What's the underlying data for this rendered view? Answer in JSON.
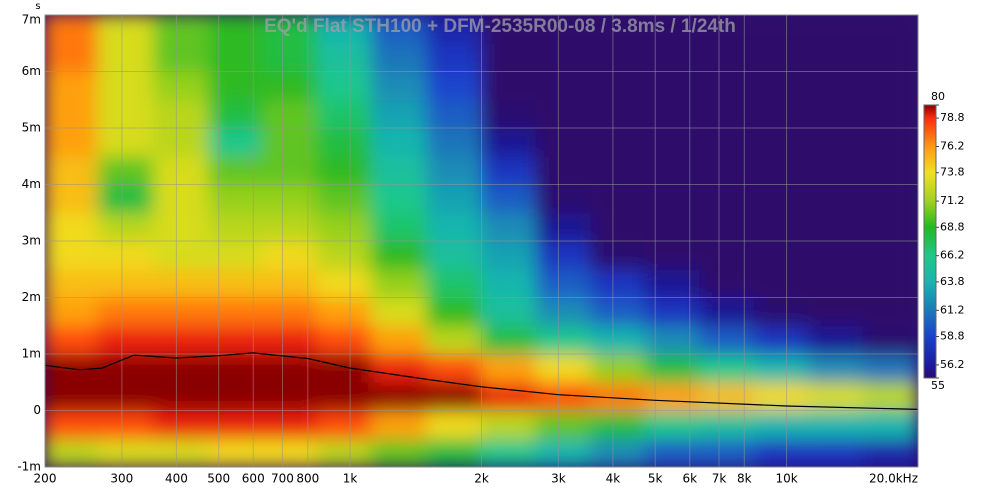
{
  "chart_data": {
    "type": "spectrogram",
    "title": "EQ'd Flat STH100 + DFM-2535R00-08 / 3.8ms / 1/24th",
    "y_unit": "s",
    "xscale": "log",
    "xlim": [
      200,
      20000
    ],
    "ylim": [
      -1,
      7
    ],
    "grid": true,
    "background": "#2d0a6b",
    "xticks": [
      200,
      300,
      400,
      500,
      600,
      700,
      800,
      {
        "value": 1000,
        "label": "1k"
      },
      {
        "value": 2000,
        "label": "2k"
      },
      {
        "value": 3000,
        "label": "3k"
      },
      {
        "value": 4000,
        "label": "4k"
      },
      {
        "value": 5000,
        "label": "5k"
      },
      {
        "value": 6000,
        "label": "6k"
      },
      {
        "value": 7000,
        "label": "7k"
      },
      {
        "value": 8000,
        "label": "8k"
      },
      {
        "value": 10000,
        "label": "10k"
      },
      {
        "value": 20000,
        "label": "20.0kHz"
      }
    ],
    "yticks": [
      {
        "value": -1,
        "label": "-1m"
      },
      0,
      {
        "value": 1,
        "label": "1m"
      },
      {
        "value": 2,
        "label": "2m"
      },
      {
        "value": 3,
        "label": "3m"
      },
      {
        "value": 4,
        "label": "4m"
      },
      {
        "value": 5,
        "label": "5m"
      },
      {
        "value": 6,
        "label": "6m"
      },
      {
        "value": 7,
        "label": "7m"
      }
    ],
    "xbins": [
      200,
      265,
      355,
      475,
      630,
      840,
      1120,
      1500,
      2000,
      2670,
      3560,
      4740,
      6320,
      8430,
      11200,
      15000,
      20000
    ],
    "ybins": [
      -1,
      -0.5,
      0,
      0.5,
      1,
      1.5,
      2,
      2.5,
      3,
      3.5,
      4,
      4.5,
      5,
      5.5,
      6,
      6.5,
      7
    ],
    "z": [
      [
        72,
        73,
        73,
        74,
        74,
        72,
        70,
        68,
        66,
        64,
        62,
        60,
        60,
        58,
        58,
        57
      ],
      [
        78,
        78,
        79,
        79,
        79,
        78,
        76,
        74,
        72,
        70,
        68,
        66,
        65,
        64,
        64,
        64
      ],
      [
        80,
        80,
        80,
        80,
        80,
        80,
        80,
        80,
        79,
        78,
        77,
        76,
        75,
        74,
        73,
        72
      ],
      [
        80,
        80,
        80,
        80,
        80,
        80,
        79,
        78,
        76,
        74,
        71,
        68,
        66,
        64,
        62,
        61
      ],
      [
        78,
        79,
        79,
        79,
        79,
        78,
        76,
        72,
        68,
        66,
        64,
        62,
        60,
        58,
        56,
        55
      ],
      [
        76,
        77,
        77,
        77,
        77,
        76,
        73,
        69,
        65,
        62,
        60,
        58,
        56,
        55,
        54,
        54
      ],
      [
        75,
        75,
        75,
        75,
        75,
        74,
        71,
        67,
        64,
        60,
        58,
        56,
        54,
        54,
        54,
        54
      ],
      [
        74,
        74,
        73,
        73,
        74,
        72,
        69,
        65,
        63,
        58,
        55,
        54,
        54,
        54,
        54,
        54
      ],
      [
        74,
        72,
        73,
        72,
        72,
        71,
        67,
        64,
        62,
        56,
        54,
        54,
        54,
        54,
        54,
        54
      ],
      [
        75,
        68,
        73,
        71,
        71,
        70,
        66,
        63,
        60,
        55,
        54,
        54,
        54,
        54,
        54,
        54
      ],
      [
        75,
        70,
        73,
        70,
        70,
        69,
        65,
        62,
        58,
        54,
        54,
        54,
        54,
        54,
        54,
        54
      ],
      [
        76,
        73,
        72,
        66,
        70,
        68,
        64,
        61,
        56,
        54,
        54,
        54,
        54,
        54,
        54,
        54
      ],
      [
        76,
        73,
        72,
        68,
        70,
        67,
        63,
        60,
        55,
        54,
        54,
        54,
        54,
        54,
        54,
        54
      ],
      [
        76,
        73,
        71,
        69,
        69,
        66,
        62,
        59,
        54,
        54,
        54,
        54,
        54,
        54,
        54,
        54
      ],
      [
        77,
        73,
        70,
        69,
        68,
        65,
        61,
        58,
        54,
        54,
        54,
        54,
        54,
        54,
        54,
        54
      ],
      [
        77,
        73,
        70,
        69,
        68,
        64,
        60,
        57,
        54,
        54,
        54,
        54,
        54,
        54,
        54,
        54
      ]
    ],
    "peak_line": {
      "color": "#000000",
      "x": [
        200,
        240,
        270,
        320,
        400,
        500,
        600,
        800,
        1000,
        1500,
        2000,
        3000,
        5000,
        10000,
        20000
      ],
      "values": [
        0.8,
        0.72,
        0.75,
        0.98,
        0.93,
        0.97,
        1.02,
        0.92,
        0.75,
        0.55,
        0.42,
        0.28,
        0.18,
        0.08,
        0.02
      ]
    },
    "colorscale": [
      [
        55,
        "#2a0a6e"
      ],
      [
        56.2,
        "#1c1c9c"
      ],
      [
        58.8,
        "#1a40d0"
      ],
      [
        61.2,
        "#1a7ab8"
      ],
      [
        63.8,
        "#19b4b0"
      ],
      [
        66.2,
        "#1ec98a"
      ],
      [
        68.8,
        "#22b822"
      ],
      [
        71.2,
        "#a0d21e"
      ],
      [
        73.8,
        "#f0e020"
      ],
      [
        76.2,
        "#ff9a10"
      ],
      [
        78.8,
        "#ff2a10"
      ],
      [
        80,
        "#8a0000"
      ]
    ],
    "clim": [
      55,
      80
    ],
    "cticks": [
      80,
      78.8,
      76.2,
      73.8,
      71.2,
      68.8,
      66.2,
      63.8,
      61.2,
      58.8,
      56.2,
      55
    ]
  }
}
